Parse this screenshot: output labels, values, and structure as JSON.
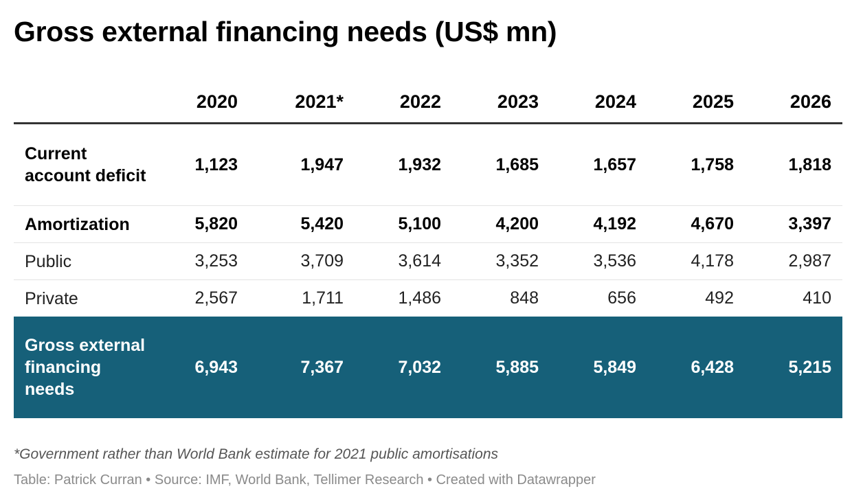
{
  "title": "Gross external financing needs (US$ mn)",
  "chart_data": {
    "type": "table",
    "columns": [
      "",
      "2020",
      "2021*",
      "2022",
      "2023",
      "2024",
      "2025",
      "2026"
    ],
    "rows": [
      {
        "label": "Current account deficit",
        "values": [
          "1,123",
          "1,947",
          "1,932",
          "1,685",
          "1,657",
          "1,758",
          "1,818"
        ]
      },
      {
        "label": "Amortization",
        "values": [
          "5,820",
          "5,420",
          "5,100",
          "4,200",
          "4,192",
          "4,670",
          "3,397"
        ]
      },
      {
        "label": "Public",
        "values": [
          "3,253",
          "3,709",
          "3,614",
          "3,352",
          "3,536",
          "4,178",
          "2,987"
        ]
      },
      {
        "label": "Private",
        "values": [
          "2,567",
          "1,711",
          "1,486",
          "848",
          "656",
          "492",
          "410"
        ]
      },
      {
        "label": "Gross external financing needs",
        "values": [
          "6,943",
          "7,367",
          "7,032",
          "5,885",
          "5,849",
          "6,428",
          "5,215"
        ]
      }
    ],
    "highlight_color": "#166079"
  },
  "footnote": "*Government rather than World Bank estimate for 2021 public amortisations",
  "credits": "Table: Patrick Curran • Source: IMF, World Bank, Tellimer Research • Created with Datawrapper"
}
